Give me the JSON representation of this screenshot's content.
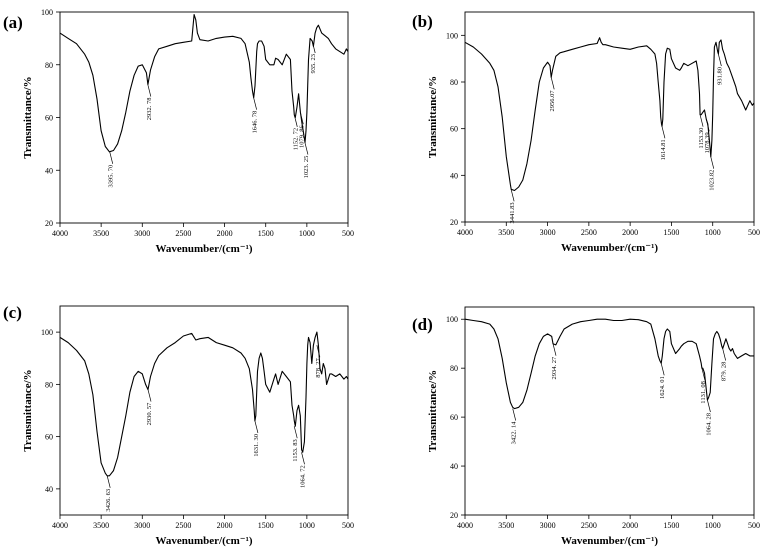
{
  "chart_data": [
    {
      "panel": "(a)",
      "type": "line",
      "xlabel": "Wavenumber/(cm⁻¹)",
      "ylabel": "Transmittance/%",
      "xlim": [
        4000,
        500
      ],
      "ylim": [
        20,
        100
      ],
      "x_reversed": true,
      "xticks": [
        4000,
        3500,
        3000,
        2500,
        2000,
        1500,
        1000,
        500
      ],
      "yticks": [
        20,
        40,
        60,
        80,
        100
      ],
      "series": [
        {
          "x": [
            4000,
            3900,
            3800,
            3700,
            3650,
            3600,
            3550,
            3500,
            3450,
            3400,
            3350,
            3300,
            3250,
            3200,
            3150,
            3100,
            3050,
            3000,
            2950,
            2932,
            2900,
            2850,
            2800,
            2700,
            2600,
            2500,
            2400,
            2370,
            2350,
            2330,
            2300,
            2200,
            2100,
            2000,
            1900,
            1800,
            1750,
            1700,
            1680,
            1660,
            1646,
            1630,
            1610,
            1600,
            1580,
            1550,
            1520,
            1500,
            1450,
            1400,
            1380,
            1350,
            1300,
            1250,
            1200,
            1180,
            1160,
            1152,
            1140,
            1120,
            1100,
            1079,
            1060,
            1040,
            1023,
            1010,
            1000,
            990,
            980,
            960,
            935,
            920,
            900,
            880,
            860,
            820,
            780,
            740,
            700,
            650,
            600,
            550,
            520,
            500
          ],
          "y": [
            92,
            90,
            88,
            84,
            81,
            76,
            67,
            55,
            49,
            47,
            47.5,
            50,
            55,
            62,
            70,
            76,
            79.5,
            80,
            77,
            72.5,
            78,
            83,
            86,
            87,
            88,
            88.5,
            89,
            99,
            97,
            92,
            89.5,
            89,
            90,
            90.5,
            90.8,
            90,
            88,
            81,
            75,
            70,
            67.5,
            72,
            85,
            88,
            89,
            89,
            87,
            82,
            80,
            80,
            82.5,
            82,
            80,
            84,
            82,
            70,
            64,
            61,
            60,
            64,
            69,
            62,
            58,
            54,
            50.5,
            55,
            62,
            72,
            82,
            90,
            89,
            87,
            92,
            94,
            95,
            92,
            91,
            90,
            88,
            86,
            85,
            84,
            86,
            85
          ]
        }
      ],
      "annotations": [
        {
          "text": "3395. 70",
          "x": 3395.7,
          "y": 47
        },
        {
          "text": "2932. 78",
          "x": 2932.78,
          "y": 72.5
        },
        {
          "text": "1646. 78",
          "x": 1646.78,
          "y": 67.5
        },
        {
          "text": "1152. 72",
          "x": 1152.72,
          "y": 61
        },
        {
          "text": "1079. 86",
          "x": 1079.86,
          "y": 62
        },
        {
          "text": "1023. 25",
          "x": 1023.25,
          "y": 50.5
        },
        {
          "text": "935. 23",
          "x": 935.23,
          "y": 89
        }
      ]
    },
    {
      "panel": "(b)",
      "type": "line",
      "xlabel": "Wavenumber/(cm⁻¹)",
      "ylabel": "Transmittance/%",
      "xlim": [
        4000,
        500
      ],
      "ylim": [
        20,
        110
      ],
      "x_reversed": true,
      "xticks": [
        4000,
        3500,
        3000,
        2500,
        2000,
        1500,
        1000,
        500
      ],
      "yticks": [
        20,
        40,
        60,
        80,
        100
      ],
      "series": [
        {
          "x": [
            4000,
            3900,
            3800,
            3700,
            3650,
            3600,
            3550,
            3500,
            3450,
            3441,
            3400,
            3350,
            3300,
            3250,
            3200,
            3150,
            3100,
            3050,
            3000,
            2970,
            2956,
            2940,
            2900,
            2850,
            2800,
            2700,
            2600,
            2500,
            2400,
            2370,
            2350,
            2330,
            2300,
            2200,
            2100,
            2000,
            1900,
            1800,
            1750,
            1700,
            1680,
            1660,
            1640,
            1630,
            1620,
            1614,
            1605,
            1590,
            1570,
            1550,
            1520,
            1500,
            1450,
            1400,
            1380,
            1350,
            1300,
            1250,
            1200,
            1180,
            1160,
            1153,
            1140,
            1120,
            1100,
            1078,
            1060,
            1040,
            1023,
            1010,
            1000,
            990,
            980,
            960,
            940,
            931,
            920,
            900,
            880,
            860,
            830,
            800,
            760,
            720,
            700,
            650,
            600,
            550,
            520,
            500
          ],
          "y": [
            97,
            95,
            92,
            88,
            85,
            78,
            65,
            48,
            36,
            34,
            33.5,
            35,
            38,
            45,
            55,
            68,
            80,
            86,
            88.5,
            87,
            82,
            85,
            91,
            92.5,
            93,
            94,
            95,
            96,
            96.5,
            99,
            97,
            96,
            96,
            95,
            94.5,
            94,
            95,
            95.5,
            94,
            92,
            88,
            80,
            72,
            65,
            62,
            61,
            64,
            80,
            92,
            94.5,
            94,
            90,
            86,
            85,
            86,
            88,
            87,
            88,
            89,
            85,
            75,
            66,
            66,
            67,
            68,
            64,
            62,
            55,
            48,
            55,
            66,
            82,
            95,
            97,
            93,
            92,
            97,
            98,
            94,
            92,
            88,
            86,
            82,
            78,
            75,
            72,
            68,
            72,
            70,
            71
          ]
        }
      ],
      "annotations": [
        {
          "text": "3441.83",
          "x": 3441.83,
          "y": 34
        },
        {
          "text": "2956.07",
          "x": 2956.07,
          "y": 82
        },
        {
          "text": "1614.81",
          "x": 1614.81,
          "y": 61
        },
        {
          "text": "1153.30",
          "x": 1153.3,
          "y": 66
        },
        {
          "text": "1078.39",
          "x": 1078.39,
          "y": 64
        },
        {
          "text": "1023.82",
          "x": 1023.82,
          "y": 48
        },
        {
          "text": "931.80",
          "x": 931.8,
          "y": 92
        }
      ]
    },
    {
      "panel": "(c)",
      "type": "line",
      "xlabel": "Wavenumber/(cm⁻¹)",
      "ylabel": "Transmittance/%",
      "xlim": [
        4000,
        500
      ],
      "ylim": [
        30,
        110
      ],
      "x_reversed": true,
      "xticks": [
        4000,
        3500,
        3000,
        2500,
        2000,
        1500,
        1000,
        500
      ],
      "yticks": [
        40,
        60,
        80,
        100
      ],
      "series": [
        {
          "x": [
            4000,
            3900,
            3800,
            3700,
            3650,
            3600,
            3550,
            3500,
            3450,
            3426,
            3400,
            3350,
            3300,
            3250,
            3200,
            3150,
            3100,
            3050,
            3000,
            2960,
            2930,
            2900,
            2850,
            2800,
            2700,
            2600,
            2500,
            2400,
            2350,
            2300,
            2200,
            2100,
            2000,
            1900,
            1800,
            1750,
            1700,
            1660,
            1640,
            1631,
            1620,
            1600,
            1580,
            1560,
            1540,
            1520,
            1500,
            1450,
            1400,
            1380,
            1350,
            1300,
            1250,
            1200,
            1180,
            1160,
            1153,
            1140,
            1120,
            1100,
            1080,
            1064,
            1050,
            1030,
            1010,
            1000,
            990,
            980,
            960,
            940,
            920,
            900,
            878,
            860,
            840,
            820,
            800,
            780,
            760,
            740,
            720,
            700,
            650,
            600,
            550,
            520,
            500
          ],
          "y": [
            98,
            96,
            93,
            89,
            84,
            76,
            62,
            50,
            46,
            45,
            45,
            47,
            52,
            60,
            68,
            77,
            83,
            85,
            84,
            80,
            78,
            83,
            88,
            91,
            94,
            96,
            98.5,
            99.5,
            97,
            97.5,
            98,
            96,
            95,
            94,
            92,
            90,
            86,
            78,
            70,
            66,
            68,
            85,
            90,
            92,
            90,
            85,
            80,
            77,
            82,
            84,
            80,
            85,
            83,
            81,
            72,
            68,
            66,
            64,
            70,
            72,
            68,
            55,
            54,
            58,
            75,
            88,
            95,
            98,
            96,
            88,
            95,
            98,
            100,
            95,
            86,
            84,
            88,
            86,
            80,
            82,
            84,
            84,
            83,
            84,
            82,
            83,
            82
          ]
        }
      ],
      "annotations": [
        {
          "text": "3426. 63",
          "x": 3426.63,
          "y": 45
        },
        {
          "text": "2930. 57",
          "x": 2930.57,
          "y": 78
        },
        {
          "text": "1631. 30",
          "x": 1631.3,
          "y": 66
        },
        {
          "text": "1153. 83",
          "x": 1153.83,
          "y": 64
        },
        {
          "text": "1064. 72",
          "x": 1064.72,
          "y": 54
        },
        {
          "text": "878. 27",
          "x": 878.27,
          "y": 95
        }
      ]
    },
    {
      "panel": "(d)",
      "type": "line",
      "xlabel": "Wavenumber/(cm⁻¹)",
      "ylabel": "Transmittance/%",
      "xlim": [
        4000,
        500
      ],
      "ylim": [
        20,
        105
      ],
      "x_reversed": true,
      "xticks": [
        4000,
        3500,
        3000,
        2500,
        2000,
        1500,
        1000,
        500
      ],
      "yticks": [
        20,
        40,
        60,
        80,
        100
      ],
      "series": [
        {
          "x": [
            4000,
            3900,
            3800,
            3700,
            3650,
            3600,
            3550,
            3500,
            3450,
            3422,
            3400,
            3350,
            3300,
            3250,
            3200,
            3150,
            3100,
            3050,
            3000,
            2950,
            2934,
            2900,
            2850,
            2800,
            2700,
            2600,
            2500,
            2400,
            2300,
            2200,
            2100,
            2000,
            1900,
            1800,
            1750,
            1700,
            1660,
            1640,
            1624,
            1610,
            1590,
            1570,
            1550,
            1520,
            1500,
            1450,
            1400,
            1380,
            1350,
            1300,
            1250,
            1200,
            1160,
            1140,
            1131,
            1120,
            1100,
            1080,
            1064,
            1050,
            1030,
            1010,
            990,
            970,
            950,
            930,
            910,
            890,
            879,
            860,
            840,
            820,
            800,
            780,
            760,
            740,
            720,
            700,
            650,
            600,
            550,
            520,
            500
          ],
          "y": [
            100,
            99.5,
            99,
            98,
            96,
            92,
            84,
            74,
            66,
            64,
            63.5,
            64,
            66,
            71,
            78,
            85,
            90,
            93,
            94,
            93,
            90,
            89.5,
            93,
            96,
            98,
            99,
            99.5,
            100,
            100,
            99.5,
            99.5,
            100,
            99.8,
            99,
            98,
            92,
            85,
            83,
            82,
            85,
            92,
            95,
            96,
            95,
            90,
            86,
            88,
            89,
            90,
            91,
            91,
            90,
            85,
            82,
            80,
            80,
            78,
            72,
            67,
            68,
            70,
            82,
            92,
            94,
            95,
            94,
            92,
            89,
            88,
            90,
            92,
            90,
            88,
            87,
            88,
            86,
            85,
            84,
            85,
            86,
            85,
            85,
            85
          ]
        }
      ],
      "annotations": [
        {
          "text": "3422. 14",
          "x": 3422.14,
          "y": 63.5
        },
        {
          "text": "2934. 27",
          "x": 2934.27,
          "y": 90
        },
        {
          "text": "1624. 01",
          "x": 1624.01,
          "y": 82
        },
        {
          "text": "1131. 08",
          "x": 1131.08,
          "y": 80
        },
        {
          "text": "1064. 28",
          "x": 1064.28,
          "y": 67
        },
        {
          "text": "879. 28",
          "x": 879.28,
          "y": 88
        }
      ]
    }
  ]
}
